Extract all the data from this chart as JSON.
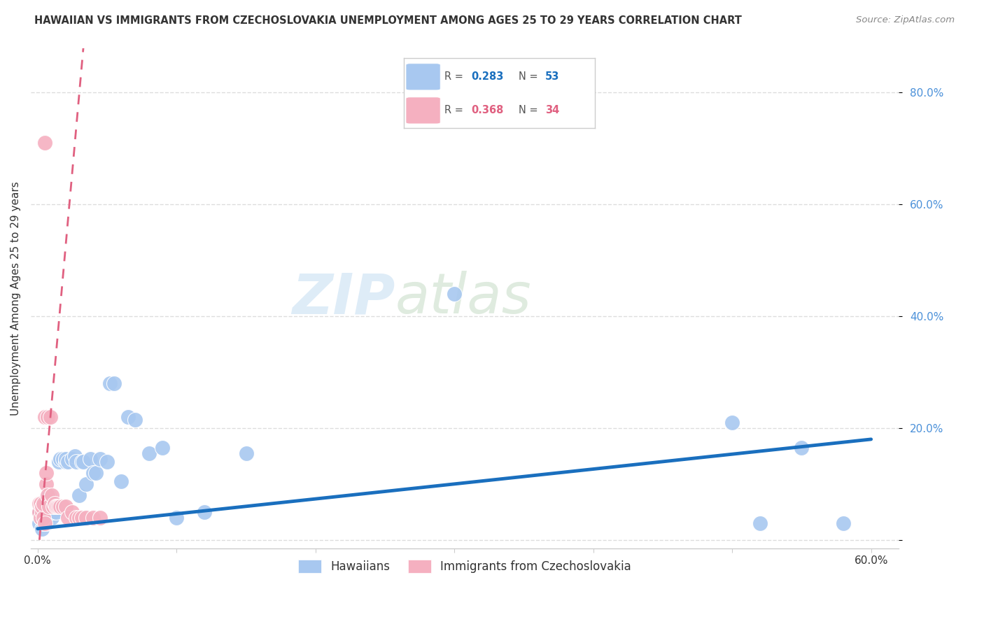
{
  "title": "HAWAIIAN VS IMMIGRANTS FROM CZECHOSLOVAKIA UNEMPLOYMENT AMONG AGES 25 TO 29 YEARS CORRELATION CHART",
  "source": "Source: ZipAtlas.com",
  "ylabel": "Unemployment Among Ages 25 to 29 years",
  "xlim": [
    -0.005,
    0.62
  ],
  "ylim": [
    -0.015,
    0.88
  ],
  "watermark_zip": "ZIP",
  "watermark_atlas": "atlas",
  "legend_hawaiians_R": "0.283",
  "legend_hawaiians_N": "53",
  "legend_czech_R": "0.368",
  "legend_czech_N": "34",
  "hawaiians_color": "#a8c8f0",
  "hawaiians_line_color": "#1a6fbe",
  "czech_color": "#f5b0c0",
  "czech_line_color": "#e06080",
  "background_color": "#ffffff",
  "grid_color": "#dddddd",
  "ytick_color": "#4a90d9",
  "hawaiians_x": [
    0.001,
    0.001,
    0.002,
    0.002,
    0.003,
    0.003,
    0.004,
    0.005,
    0.005,
    0.006,
    0.006,
    0.007,
    0.008,
    0.008,
    0.009,
    0.01,
    0.01,
    0.011,
    0.012,
    0.013,
    0.015,
    0.016,
    0.018,
    0.02,
    0.02,
    0.022,
    0.025,
    0.027,
    0.028,
    0.03,
    0.032,
    0.033,
    0.035,
    0.038,
    0.04,
    0.042,
    0.045,
    0.05,
    0.052,
    0.055,
    0.06,
    0.065,
    0.07,
    0.08,
    0.09,
    0.1,
    0.12,
    0.15,
    0.3,
    0.5,
    0.52,
    0.55,
    0.58
  ],
  "hawaiians_y": [
    0.03,
    0.05,
    0.04,
    0.06,
    0.02,
    0.05,
    0.03,
    0.04,
    0.06,
    0.03,
    0.07,
    0.04,
    0.05,
    0.08,
    0.065,
    0.04,
    0.065,
    0.05,
    0.06,
    0.05,
    0.14,
    0.145,
    0.145,
    0.14,
    0.145,
    0.14,
    0.145,
    0.15,
    0.14,
    0.08,
    0.14,
    0.14,
    0.1,
    0.145,
    0.12,
    0.12,
    0.145,
    0.14,
    0.28,
    0.28,
    0.105,
    0.22,
    0.215,
    0.155,
    0.165,
    0.04,
    0.05,
    0.155,
    0.44,
    0.21,
    0.03,
    0.165,
    0.03
  ],
  "czech_x": [
    0.001,
    0.001,
    0.002,
    0.002,
    0.003,
    0.003,
    0.004,
    0.004,
    0.005,
    0.005,
    0.005,
    0.006,
    0.006,
    0.007,
    0.007,
    0.008,
    0.009,
    0.01,
    0.011,
    0.012,
    0.013,
    0.014,
    0.015,
    0.016,
    0.018,
    0.02,
    0.022,
    0.025,
    0.028,
    0.03,
    0.032,
    0.035,
    0.04,
    0.045
  ],
  "czech_y": [
    0.05,
    0.065,
    0.04,
    0.065,
    0.05,
    0.06,
    0.04,
    0.065,
    0.03,
    0.22,
    0.71,
    0.1,
    0.12,
    0.08,
    0.22,
    0.06,
    0.22,
    0.08,
    0.06,
    0.065,
    0.06,
    0.06,
    0.06,
    0.06,
    0.06,
    0.06,
    0.04,
    0.05,
    0.04,
    0.04,
    0.04,
    0.04,
    0.04,
    0.04
  ]
}
